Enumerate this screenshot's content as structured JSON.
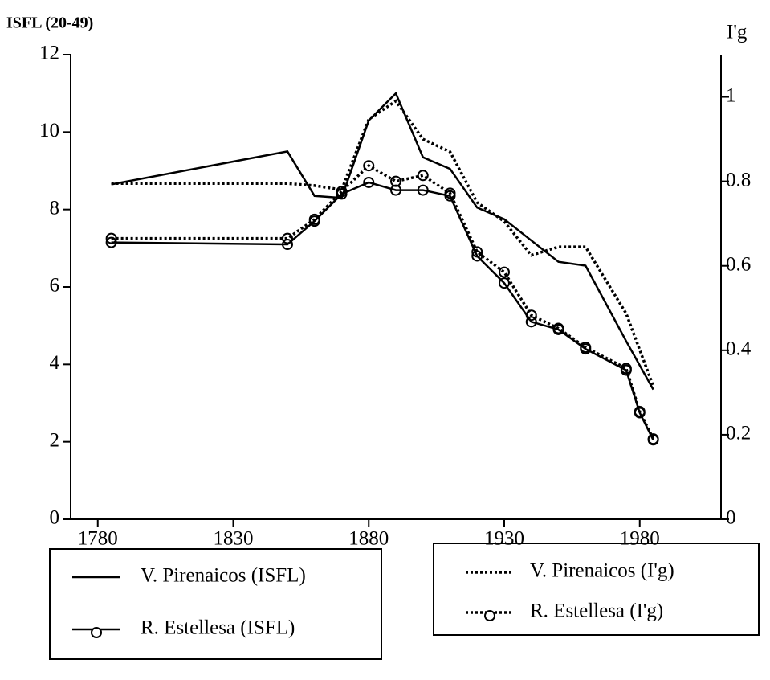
{
  "chart_data": {
    "type": "line",
    "y_label": "ISFL (20-49)",
    "y2_label": "I'g",
    "xlim": [
      1770,
      2010
    ],
    "xticks": [
      1780,
      1830,
      1880,
      1930,
      1980
    ],
    "ylim": [
      0,
      12
    ],
    "yticks": [
      0,
      2,
      4,
      6,
      8,
      10,
      12
    ],
    "y2lim": [
      0,
      1.1
    ],
    "y2ticks": [
      0,
      0.2,
      0.4,
      0.6,
      0.8,
      1
    ],
    "series": [
      {
        "name": "V. Pirenaicos (ISFL)",
        "color": "#000000",
        "dash": "solid",
        "marker": "none",
        "x": [
          1785,
          1850,
          1860,
          1870,
          1880,
          1890,
          1900,
          1910,
          1920,
          1930,
          1940,
          1950,
          1960,
          1975,
          1985
        ],
        "values": [
          8.65,
          9.5,
          8.35,
          8.3,
          10.3,
          11.0,
          9.35,
          9.05,
          8.05,
          7.75,
          7.2,
          6.65,
          6.55,
          4.6,
          3.35
        ]
      },
      {
        "name": "R. Estellesa (ISFL)",
        "color": "#000000",
        "dash": "solid",
        "marker": "circle",
        "x": [
          1785,
          1850,
          1860,
          1870,
          1880,
          1890,
          1900,
          1910,
          1920,
          1930,
          1940,
          1950,
          1960,
          1975,
          1980,
          1985
        ],
        "values": [
          7.15,
          7.1,
          7.7,
          8.4,
          8.7,
          8.5,
          8.5,
          8.35,
          6.8,
          6.1,
          5.1,
          4.9,
          4.4,
          3.85,
          2.75,
          2.05
        ]
      },
      {
        "name": "V. Pirenaicos (I'g)",
        "color": "#000000",
        "dash": "dotted",
        "marker": "none",
        "axis": "y2",
        "x": [
          1785,
          1850,
          1860,
          1870,
          1880,
          1890,
          1900,
          1910,
          1920,
          1930,
          1940,
          1950,
          1960,
          1975,
          1985
        ],
        "values": [
          0.795,
          0.795,
          0.79,
          0.78,
          0.947,
          0.99,
          0.9,
          0.87,
          0.75,
          0.705,
          0.625,
          0.645,
          0.645,
          0.487,
          0.315
        ]
      },
      {
        "name": "R. Estellesa (I'g)",
        "color": "#000000",
        "dash": "dotted",
        "marker": "circle",
        "axis": "y2",
        "x": [
          1785,
          1850,
          1860,
          1870,
          1880,
          1890,
          1900,
          1910,
          1920,
          1930,
          1940,
          1950,
          1960,
          1975,
          1980,
          1985
        ],
        "values": [
          0.665,
          0.665,
          0.71,
          0.776,
          0.837,
          0.8,
          0.814,
          0.772,
          0.633,
          0.585,
          0.483,
          0.452,
          0.407,
          0.357,
          0.255,
          0.19
        ]
      }
    ]
  }
}
